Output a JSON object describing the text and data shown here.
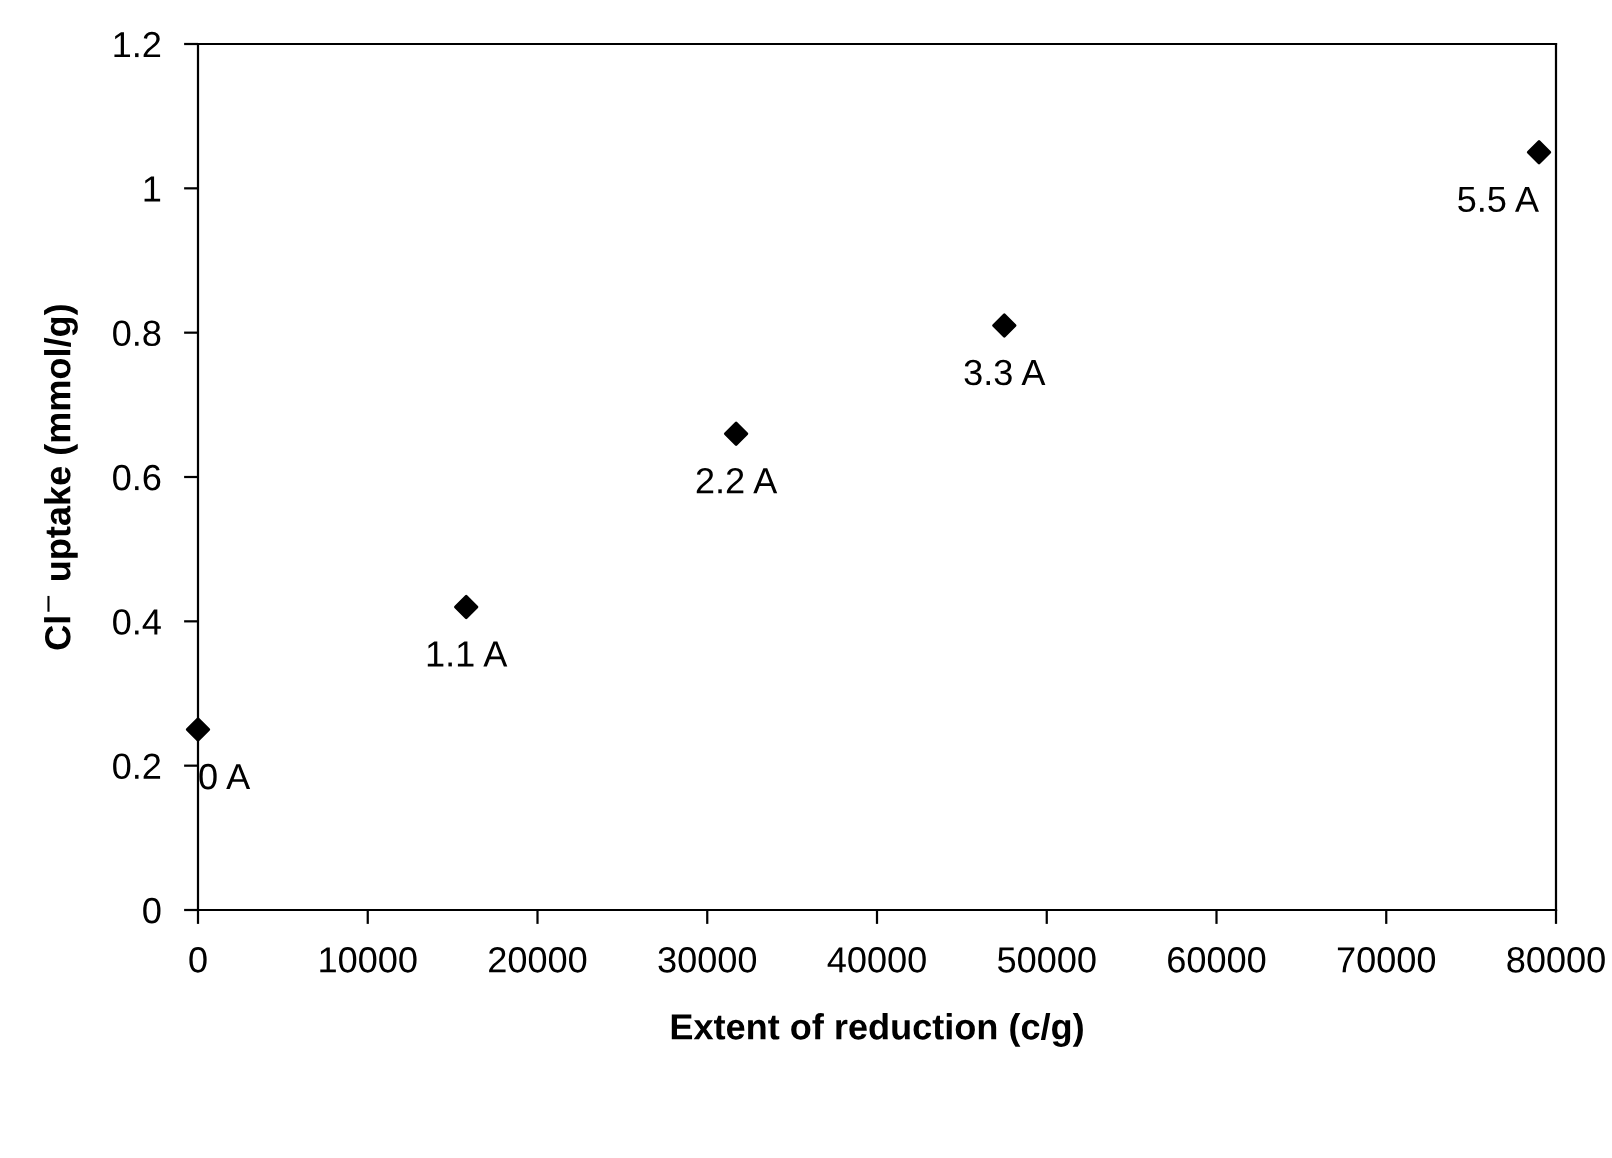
{
  "chart_data": {
    "type": "scatter",
    "xlabel": "Extent of reduction (c/g)",
    "ylabel": "Cl$^{−}$ uptake (mmol/g)",
    "x": [
      0,
      15800,
      31700,
      47500,
      79000
    ],
    "values": [
      0.25,
      0.42,
      0.66,
      0.81,
      1.05
    ],
    "color": "#000000",
    "marker": "diamond",
    "xlim": [
      0,
      80000
    ],
    "xticks": [
      0,
      10000,
      20000,
      30000,
      40000,
      50000,
      60000,
      70000,
      80000
    ],
    "ylim": [
      0,
      1.2
    ],
    "yticks": [
      0,
      0.2,
      0.4,
      0.6,
      0.8,
      1,
      1.2
    ],
    "annotations": [
      {
        "text": "0 A",
        "x": 0,
        "y": 0.25
      },
      {
        "text": "1.1 A",
        "x": 15800,
        "y": 0.42
      },
      {
        "text": "2.2 A",
        "x": 31700,
        "y": 0.66
      },
      {
        "text": "3.3 A",
        "x": 47500,
        "y": 0.81
      },
      {
        "text": "5.5 A",
        "x": 79000,
        "y": 1.05
      }
    ],
    "grid": false,
    "legend": false
  }
}
